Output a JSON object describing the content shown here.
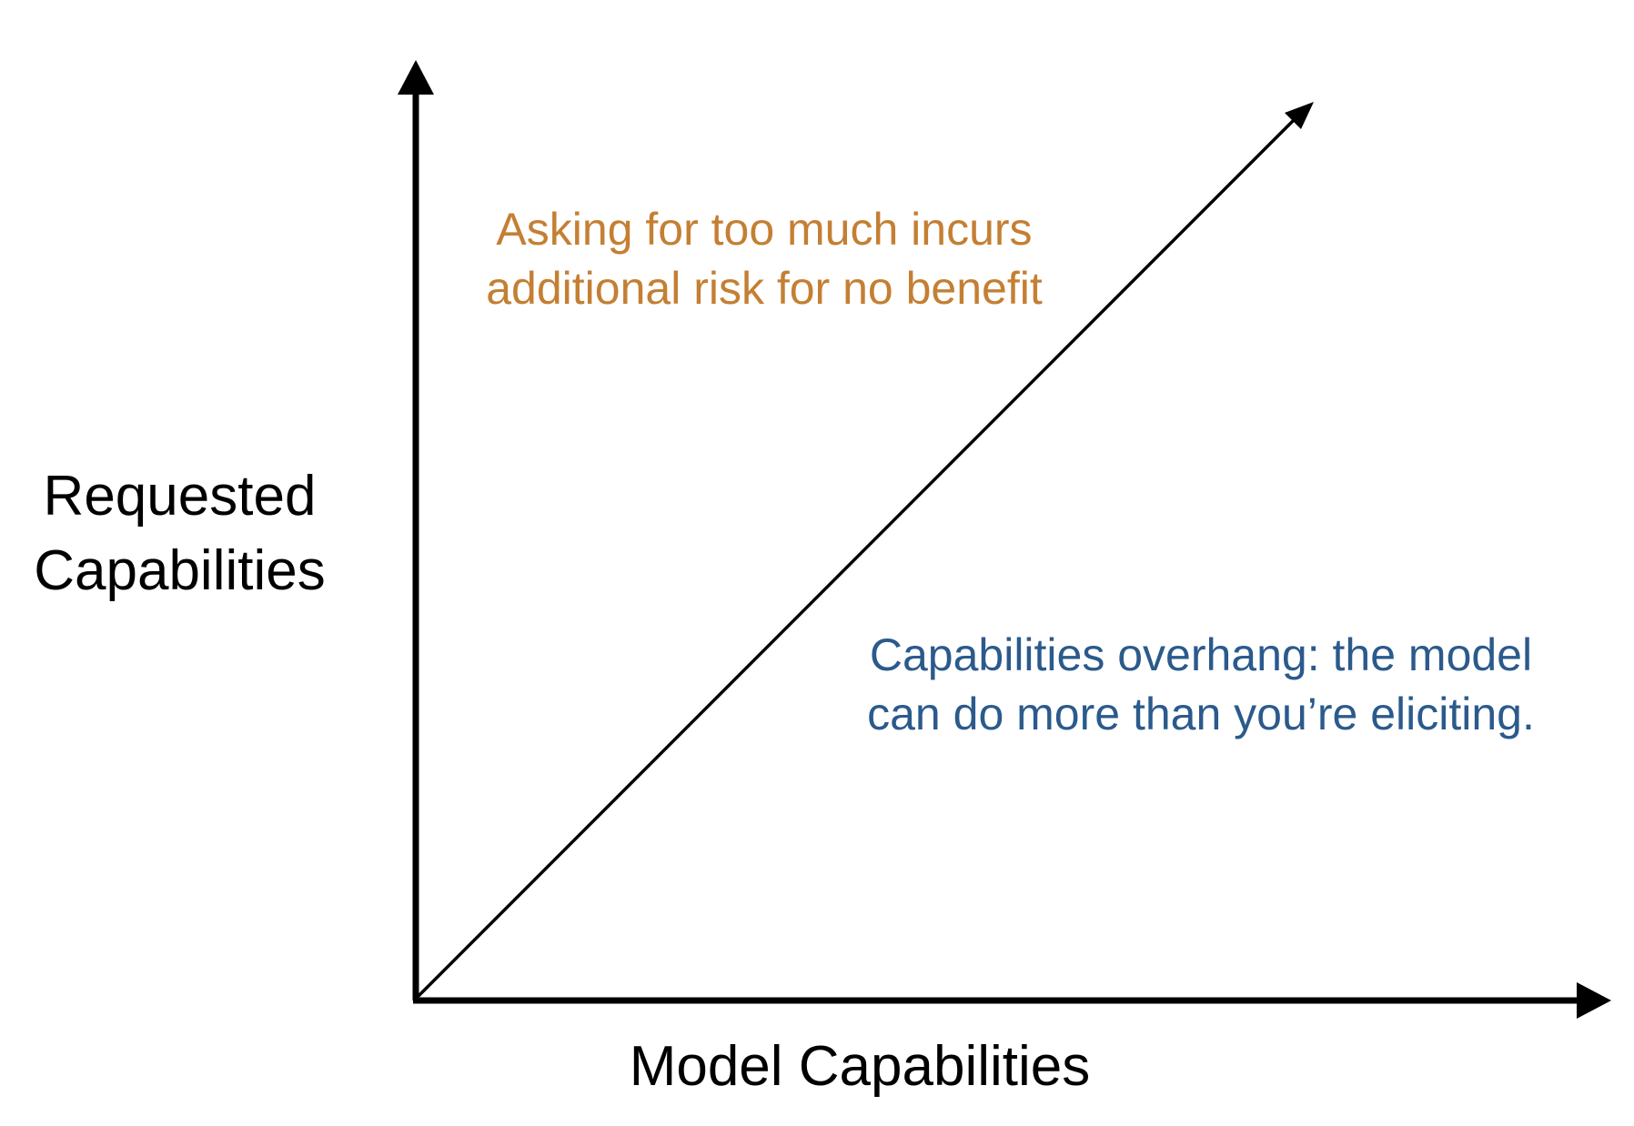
{
  "axes": {
    "y_label_lines": [
      "Requested",
      "Capabilities"
    ],
    "x_label": "Model Capabilities"
  },
  "annotations": {
    "upper_left": {
      "lines": [
        "Asking for too much incurs",
        "additional risk for no benefit"
      ],
      "color": "#c47f33"
    },
    "lower_right": {
      "lines": [
        "Capabilities overhang: the model",
        "can do more than you’re eliciting."
      ],
      "color": "#2b5a8c"
    }
  },
  "colors": {
    "axes": "#000000",
    "diagonal": "#000000"
  }
}
